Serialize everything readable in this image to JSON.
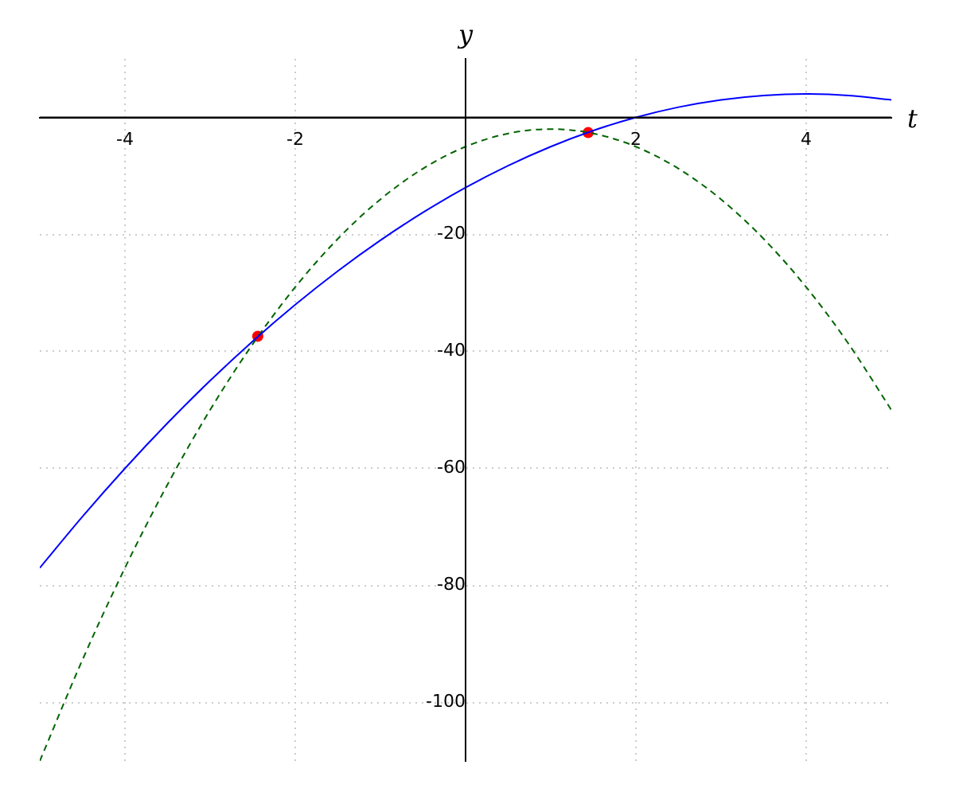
{
  "chart_data": {
    "type": "line",
    "xlabel": "t",
    "ylabel": "y",
    "x": [
      -5,
      -4.5,
      -4,
      -3.5,
      -3,
      -2.5,
      -2,
      -1.5,
      -1,
      -0.5,
      0,
      0.5,
      1,
      1.5,
      2,
      2.5,
      3,
      3.5,
      4,
      4.5,
      5
    ],
    "series": [
      {
        "color": "#0000ff",
        "line_style": "solid",
        "marker": "none",
        "values": [
          -77,
          -68.25,
          -60,
          -52.25,
          -45,
          -38.25,
          -32,
          -26.25,
          -21,
          -16.25,
          -12,
          -8.25,
          -5,
          -2.25,
          0,
          1.75,
          3,
          3.75,
          4,
          3.75,
          3
        ]
      },
      {
        "color": "#006400",
        "line_style": "dashed",
        "marker": "none",
        "values": [
          -110,
          -92.75,
          -77,
          -62.75,
          -50,
          -38.75,
          -29,
          -20.75,
          -14,
          -8.75,
          -5,
          -2.75,
          -2,
          -2.75,
          -5,
          -8.75,
          -14,
          -20.75,
          -29,
          -38.75,
          -50
        ]
      },
      {
        "type": "scatter",
        "color": "#ff0000",
        "marker": "circle",
        "x": [
          -2.44,
          1.44
        ],
        "values": [
          -37.4,
          -2.6
        ]
      }
    ],
    "xlim": [
      -5,
      5
    ],
    "ylim": [
      -110,
      10
    ],
    "xticks": [
      -4,
      -2,
      2,
      4
    ],
    "yticks": [
      -20,
      -40,
      -60,
      -80,
      -100
    ],
    "grid": true,
    "legend": false
  }
}
